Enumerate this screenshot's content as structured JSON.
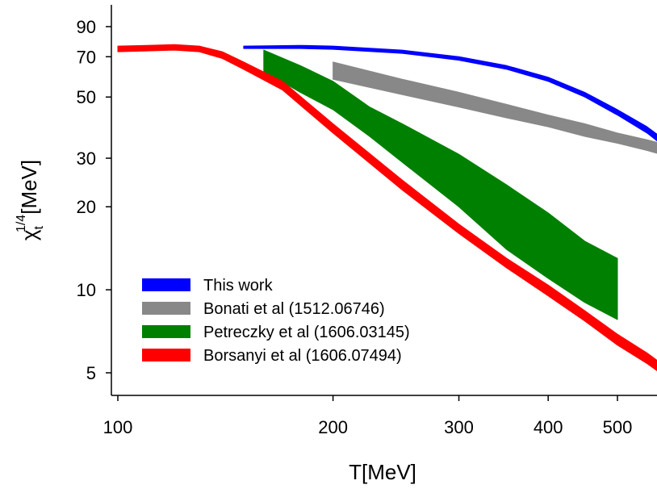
{
  "chart_data": {
    "type": "area",
    "xlabel": "T[MeV]",
    "ylabel": "χt1/4[MeV]",
    "ylabel_parts": {
      "symbol": "χ",
      "subscript": "t",
      "superscript": "1/4",
      "unit": "[MeV]"
    },
    "x_scale": "log",
    "y_scale": "log",
    "xlim": [
      100,
      600
    ],
    "ylim": [
      4,
      110
    ],
    "x_ticks": [
      100,
      200,
      300,
      400,
      500
    ],
    "x_tick_labels": [
      "100",
      "200",
      "300",
      "400",
      "500"
    ],
    "y_ticks": [
      5,
      10,
      20,
      30,
      50,
      70,
      90
    ],
    "y_tick_labels": [
      "5",
      "10",
      "20",
      "30",
      "50",
      "70",
      "90"
    ],
    "grid": false,
    "legend_position": "bottom-left",
    "series": [
      {
        "name": "This work",
        "color": "#0000ff",
        "x": [
          150,
          180,
          200,
          250,
          300,
          350,
          400,
          450,
          500,
          550,
          600
        ],
        "y_low": [
          75,
          75,
          74.5,
          72,
          68,
          63,
          57,
          50,
          43,
          37,
          31
        ],
        "y_high": [
          76.5,
          77,
          76.5,
          74,
          70,
          65,
          59,
          52,
          45,
          39,
          33
        ]
      },
      {
        "name": "Bonati et al (1512.06746)",
        "color": "#888888",
        "x": [
          200,
          250,
          300,
          350,
          400,
          450,
          500,
          550,
          600
        ],
        "y_low": [
          58,
          51,
          46,
          42,
          39,
          36,
          34,
          32,
          30
        ],
        "y_high": [
          67,
          58,
          52,
          47,
          43,
          40,
          37,
          35,
          33
        ]
      },
      {
        "name": "Petreczky et al (1606.03145)",
        "color": "#008000",
        "x": [
          160,
          180,
          200,
          225,
          250,
          300,
          350,
          400,
          450,
          500
        ],
        "y_low": [
          62,
          52,
          45,
          36,
          29,
          20,
          14,
          11,
          9,
          7.8
        ],
        "y_high": [
          74,
          65,
          57,
          46,
          40,
          31,
          24,
          19,
          15,
          13
        ]
      },
      {
        "name": "Borsanyi et al (1606.07494)",
        "color": "#ff0000",
        "x": [
          100,
          110,
          120,
          130,
          140,
          150,
          170,
          200,
          250,
          300,
          350,
          400,
          450,
          500,
          550,
          600
        ],
        "y_low": [
          73,
          73.5,
          74,
          73,
          69,
          63,
          53,
          37,
          23,
          16,
          12,
          9.5,
          7.7,
          6.3,
          5.4,
          4.6
        ],
        "y_high": [
          76.5,
          77,
          77.5,
          76.5,
          73,
          67,
          57,
          40,
          25,
          17.3,
          13,
          10.4,
          8.4,
          6.9,
          5.9,
          5.0
        ]
      }
    ]
  }
}
